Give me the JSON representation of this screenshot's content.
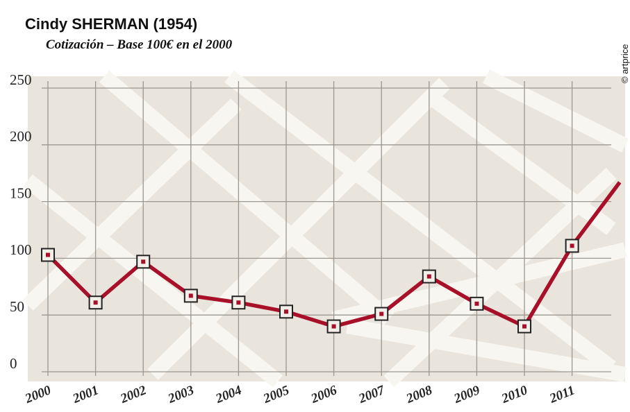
{
  "chart_data": {
    "type": "line",
    "title": "Cindy SHERMAN (1954)",
    "subtitle": "Cotización – Base 100€ en el 2000",
    "source": "© artprice",
    "categories": [
      "2000",
      "2001",
      "2002",
      "2003",
      "2004",
      "2005",
      "2006",
      "2007",
      "2008",
      "2009",
      "2010",
      "2011",
      null
    ],
    "series": [
      {
        "color": "#a8102a",
        "values": [
          103,
          61,
          97,
          67,
          61,
          53,
          40,
          51,
          84,
          60,
          40,
          111,
          167
        ]
      }
    ],
    "ylim": [
      0,
      250
    ],
    "yticks": [
      0,
      50,
      100,
      150,
      200,
      250
    ],
    "grid": true
  }
}
